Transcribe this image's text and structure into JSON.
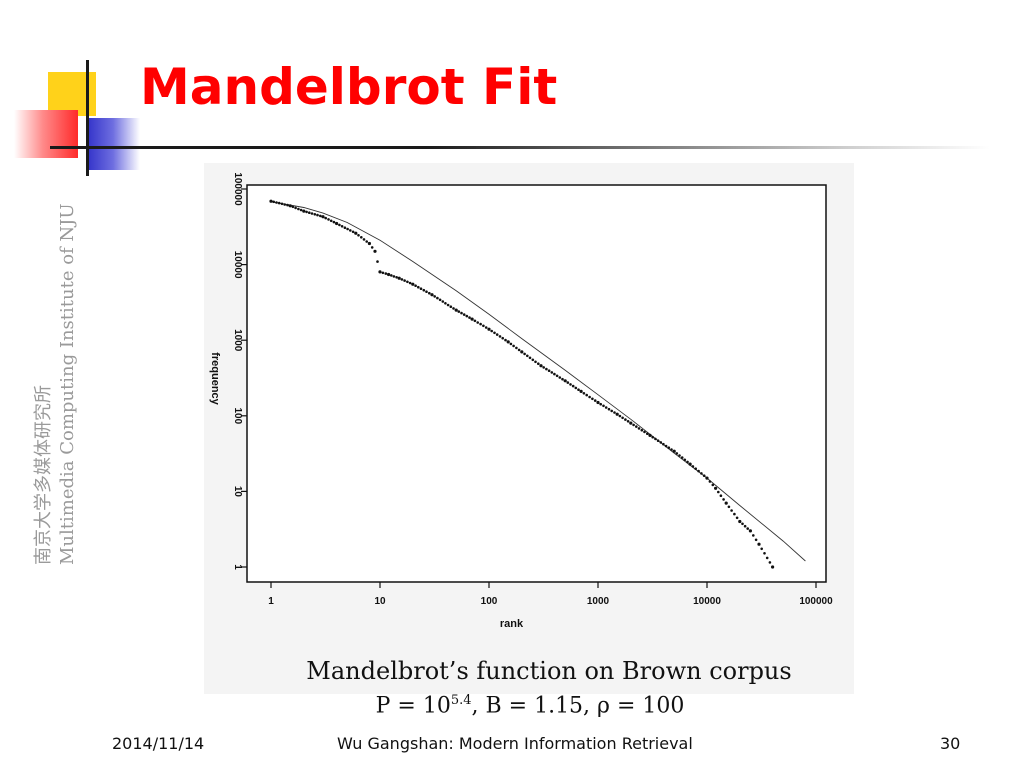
{
  "slide": {
    "title": "Mandelbrot Fit",
    "side_text_cn": "南京大学多媒体研究所",
    "side_text_en": "Multimedia Computing Institute of NJU",
    "caption": "Mandelbrot’s function on Brown corpus",
    "formula": {
      "p_prefix": "P = 10",
      "p_exponent": "5.4",
      "rest": ", B = 1.15, ρ = 100"
    },
    "footer": {
      "date": "2014/11/14",
      "center": "Wu Gangshan: Modern Information Retrieval",
      "page": "30"
    }
  },
  "colors": {
    "title": "#ff0000",
    "accent_yellow": "#ffd21a",
    "accent_red": "#ff2a2a",
    "accent_blue": "#3030c8",
    "side_text": "#9a9a9a"
  },
  "chart_data": {
    "type": "scatter",
    "xlabel": "rank",
    "ylabel": "frequency",
    "x_scale": "log",
    "y_scale": "log",
    "xlim": [
      1,
      100000
    ],
    "ylim": [
      1,
      100000
    ],
    "x_ticks": [
      {
        "value": 1,
        "label": "1"
      },
      {
        "value": 10,
        "label": "10"
      },
      {
        "value": 100,
        "label": "100"
      },
      {
        "value": 1000,
        "label": "1000"
      },
      {
        "value": 10000,
        "label": "10000"
      },
      {
        "value": 100000,
        "label": "100000"
      }
    ],
    "y_ticks": [
      {
        "value": 1,
        "label": "1"
      },
      {
        "value": 10,
        "label": "10"
      },
      {
        "value": 100,
        "label": "100"
      },
      {
        "value": 1000,
        "label": "1000"
      },
      {
        "value": 10000,
        "label": "10000"
      },
      {
        "value": 100000,
        "label": "100000"
      }
    ],
    "grid": false,
    "series": [
      {
        "kind": "points",
        "points": [
          [
            1,
            69000
          ],
          [
            1.5,
            60000
          ],
          [
            2,
            51000
          ],
          [
            3,
            43000
          ],
          [
            4,
            35000
          ],
          [
            6,
            26000
          ],
          [
            8,
            19000
          ],
          [
            9,
            15000
          ],
          [
            10,
            8000
          ],
          [
            12,
            7400
          ],
          [
            15,
            6600
          ],
          [
            20,
            5500
          ],
          [
            30,
            4000
          ],
          [
            50,
            2500
          ],
          [
            70,
            1900
          ],
          [
            100,
            1400
          ],
          [
            150,
            950
          ],
          [
            200,
            700
          ],
          [
            300,
            460
          ],
          [
            500,
            290
          ],
          [
            700,
            210
          ],
          [
            1000,
            150
          ],
          [
            1500,
            105
          ],
          [
            2000,
            80
          ],
          [
            3000,
            55
          ],
          [
            5000,
            34
          ],
          [
            7000,
            23
          ],
          [
            10000,
            15
          ],
          [
            12000,
            11
          ],
          [
            15000,
            7
          ],
          [
            20000,
            4
          ],
          [
            25000,
            3
          ],
          [
            30000,
            2
          ],
          [
            40000,
            1
          ]
        ]
      },
      {
        "kind": "line",
        "name": "",
        "points": [
          [
            1,
            68000
          ],
          [
            2,
            57000
          ],
          [
            3,
            48000
          ],
          [
            5,
            36000
          ],
          [
            10,
            21000
          ],
          [
            20,
            11000
          ],
          [
            50,
            4500
          ],
          [
            100,
            2200
          ],
          [
            200,
            1050
          ],
          [
            500,
            400
          ],
          [
            1000,
            190
          ],
          [
            2000,
            90
          ],
          [
            5000,
            32
          ],
          [
            10000,
            15
          ],
          [
            20000,
            6.5
          ],
          [
            50000,
            2.2
          ],
          [
            80000,
            1.2
          ]
        ]
      }
    ]
  }
}
